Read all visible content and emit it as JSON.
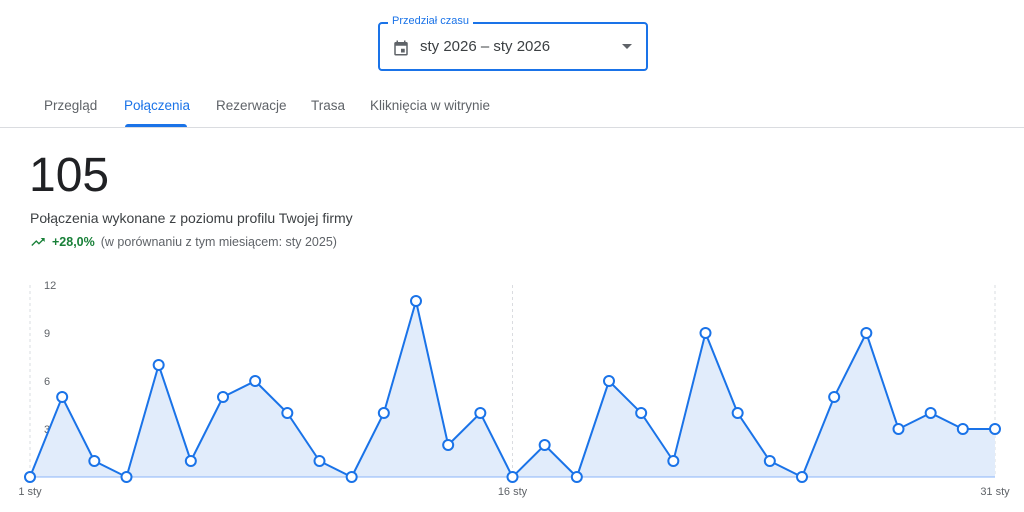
{
  "date_range": {
    "label": "Przedział czasu",
    "value": "sty 2026 – sty 2026",
    "icon": "calendar-icon"
  },
  "tabs": [
    {
      "label": "Przegląd",
      "active": false
    },
    {
      "label": "Połączenia",
      "active": true
    },
    {
      "label": "Rezerwacje",
      "active": false
    },
    {
      "label": "Trasa",
      "active": false
    },
    {
      "label": "Kliknięcia w witrynie",
      "active": false
    }
  ],
  "summary": {
    "total": "105",
    "description": "Połączenia wykonane z poziomu profilu Twojej firmy",
    "change": "+28,0%",
    "comparison": "(w porównaniu z tym miesiącem: sty 2025)",
    "trend_icon": "trending-up-icon",
    "trend_color": "#188038"
  },
  "chart_data": {
    "type": "area",
    "x": [
      1,
      2,
      3,
      4,
      5,
      6,
      7,
      8,
      9,
      10,
      11,
      12,
      13,
      14,
      15,
      16,
      17,
      18,
      19,
      20,
      21,
      22,
      23,
      24,
      25,
      26,
      27,
      28,
      29,
      30,
      31
    ],
    "values": [
      0,
      5,
      1,
      0,
      7,
      1,
      5,
      6,
      4,
      1,
      0,
      4,
      11,
      2,
      4,
      0,
      2,
      0,
      6,
      4,
      1,
      9,
      4,
      1,
      0,
      5,
      9,
      3,
      4,
      3,
      3
    ],
    "ylim": [
      0,
      12
    ],
    "yticks": [
      "3",
      "6",
      "9",
      "12"
    ],
    "xticks": [
      {
        "day": 1,
        "label": "1 sty"
      },
      {
        "day": 16,
        "label": "16 sty"
      },
      {
        "day": 31,
        "label": "31 sty"
      }
    ],
    "line_color": "#1a73e8",
    "fill_color": "#e1ecfb"
  }
}
